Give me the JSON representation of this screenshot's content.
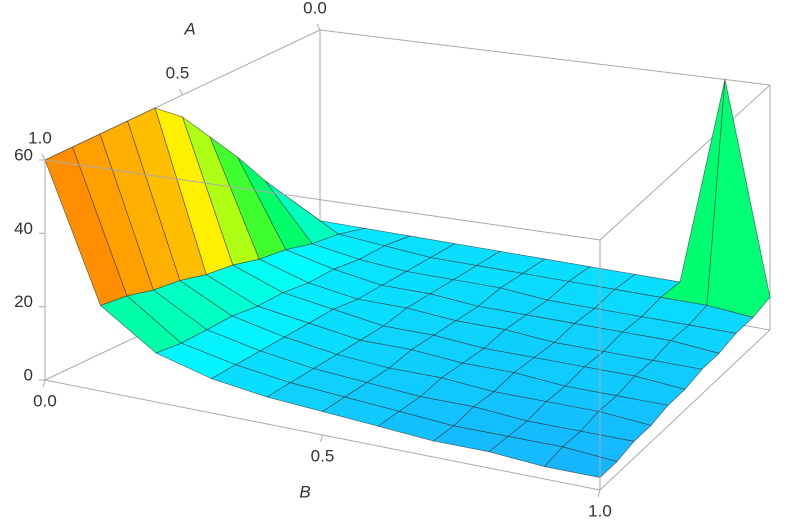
{
  "chart_data": {
    "type": "surface",
    "x_label": "B",
    "y_label": "A",
    "x": [
      0,
      0.1,
      0.2,
      0.3,
      0.4,
      0.5,
      0.6,
      0.7,
      0.8,
      0.9,
      1
    ],
    "y": [
      0,
      0.1,
      0.2,
      0.3,
      0.4,
      0.5,
      0.6,
      0.7,
      0.8,
      0.9,
      1
    ],
    "z": [
      [
        8,
        8,
        8,
        8,
        8,
        8,
        8,
        8,
        8,
        60,
        8
      ],
      [
        17,
        10,
        9,
        8,
        8,
        8,
        8,
        8,
        8,
        8,
        7
      ],
      [
        26,
        11,
        9,
        8,
        8,
        8,
        7,
        7,
        7,
        7,
        7
      ],
      [
        36,
        13,
        10,
        8,
        8,
        7,
        7,
        7,
        7,
        7,
        6
      ],
      [
        45,
        14,
        10,
        8,
        8,
        7,
        7,
        6,
        6,
        6,
        6
      ],
      [
        54,
        16,
        11,
        9,
        7,
        7,
        6,
        6,
        6,
        6,
        5
      ],
      [
        60,
        17,
        11,
        9,
        7,
        7,
        6,
        6,
        5,
        5,
        5
      ],
      [
        60,
        19,
        12,
        9,
        7,
        6,
        6,
        5,
        5,
        5,
        4
      ],
      [
        60,
        20,
        12,
        9,
        7,
        6,
        5,
        5,
        4,
        4,
        4
      ],
      [
        60,
        22,
        12,
        9,
        7,
        6,
        5,
        4,
        4,
        4,
        3
      ],
      [
        60,
        23,
        13,
        9,
        7,
        6,
        5,
        4,
        4,
        3,
        3
      ]
    ],
    "xlim": [
      0,
      1
    ],
    "ylim": [
      0,
      1
    ],
    "zlim": [
      0,
      60
    ],
    "xticks": [
      {
        "value": 0,
        "label": "0.0"
      },
      {
        "value": 0.5,
        "label": "0.5"
      },
      {
        "value": 1,
        "label": "1.0"
      }
    ],
    "yticks": [
      {
        "value": 0,
        "label": "0.0"
      },
      {
        "value": 0.5,
        "label": "0.5"
      },
      {
        "value": 1,
        "label": "1.0"
      }
    ],
    "zticks": [
      0,
      20,
      40,
      60
    ],
    "colors": [
      "#1e9bff",
      "#00ffff",
      "#00ff40",
      "#ffff00",
      "#ff0000",
      "#ff00ff"
    ]
  }
}
